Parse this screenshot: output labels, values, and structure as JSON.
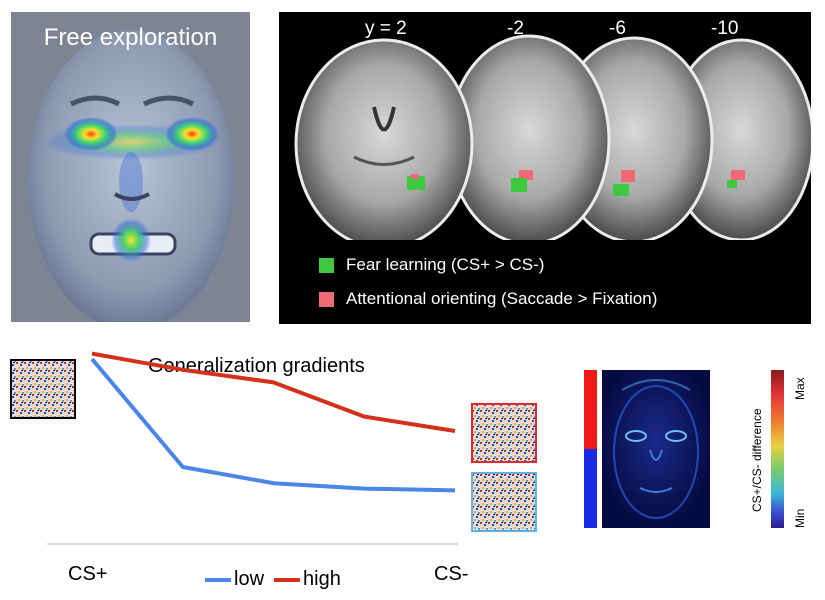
{
  "face_panel": {
    "title": "Free exploration"
  },
  "brain_panel": {
    "slice_labels": [
      "y = 2",
      "-2",
      "-6",
      "-10"
    ],
    "legend": [
      {
        "label": "Fear learning (CS+ > CS-)",
        "color": "#3fc840"
      },
      {
        "label": "Attentional orienting (Saccade > Fixation)",
        "color": "#ef6a72"
      }
    ]
  },
  "gradient_chart": {
    "title": "Generalization gradients",
    "x_start_label": "CS+",
    "x_end_label": "CS-",
    "legend": [
      {
        "label": "low",
        "color": "#4a86e8"
      },
      {
        "label": "high",
        "color": "#d62f1a"
      }
    ],
    "chart_data": {
      "type": "line",
      "x": [
        1,
        2,
        3,
        4,
        5
      ],
      "series": [
        {
          "name": "low",
          "values": [
            95,
            35,
            26,
            23,
            22
          ]
        },
        {
          "name": "high",
          "values": [
            98,
            89,
            82,
            63,
            55
          ]
        }
      ]
    }
  },
  "difference_map": {
    "colorbar_title": "CS+/CS- difference",
    "colorbar_max": "Max",
    "colorbar_min": "Min"
  }
}
